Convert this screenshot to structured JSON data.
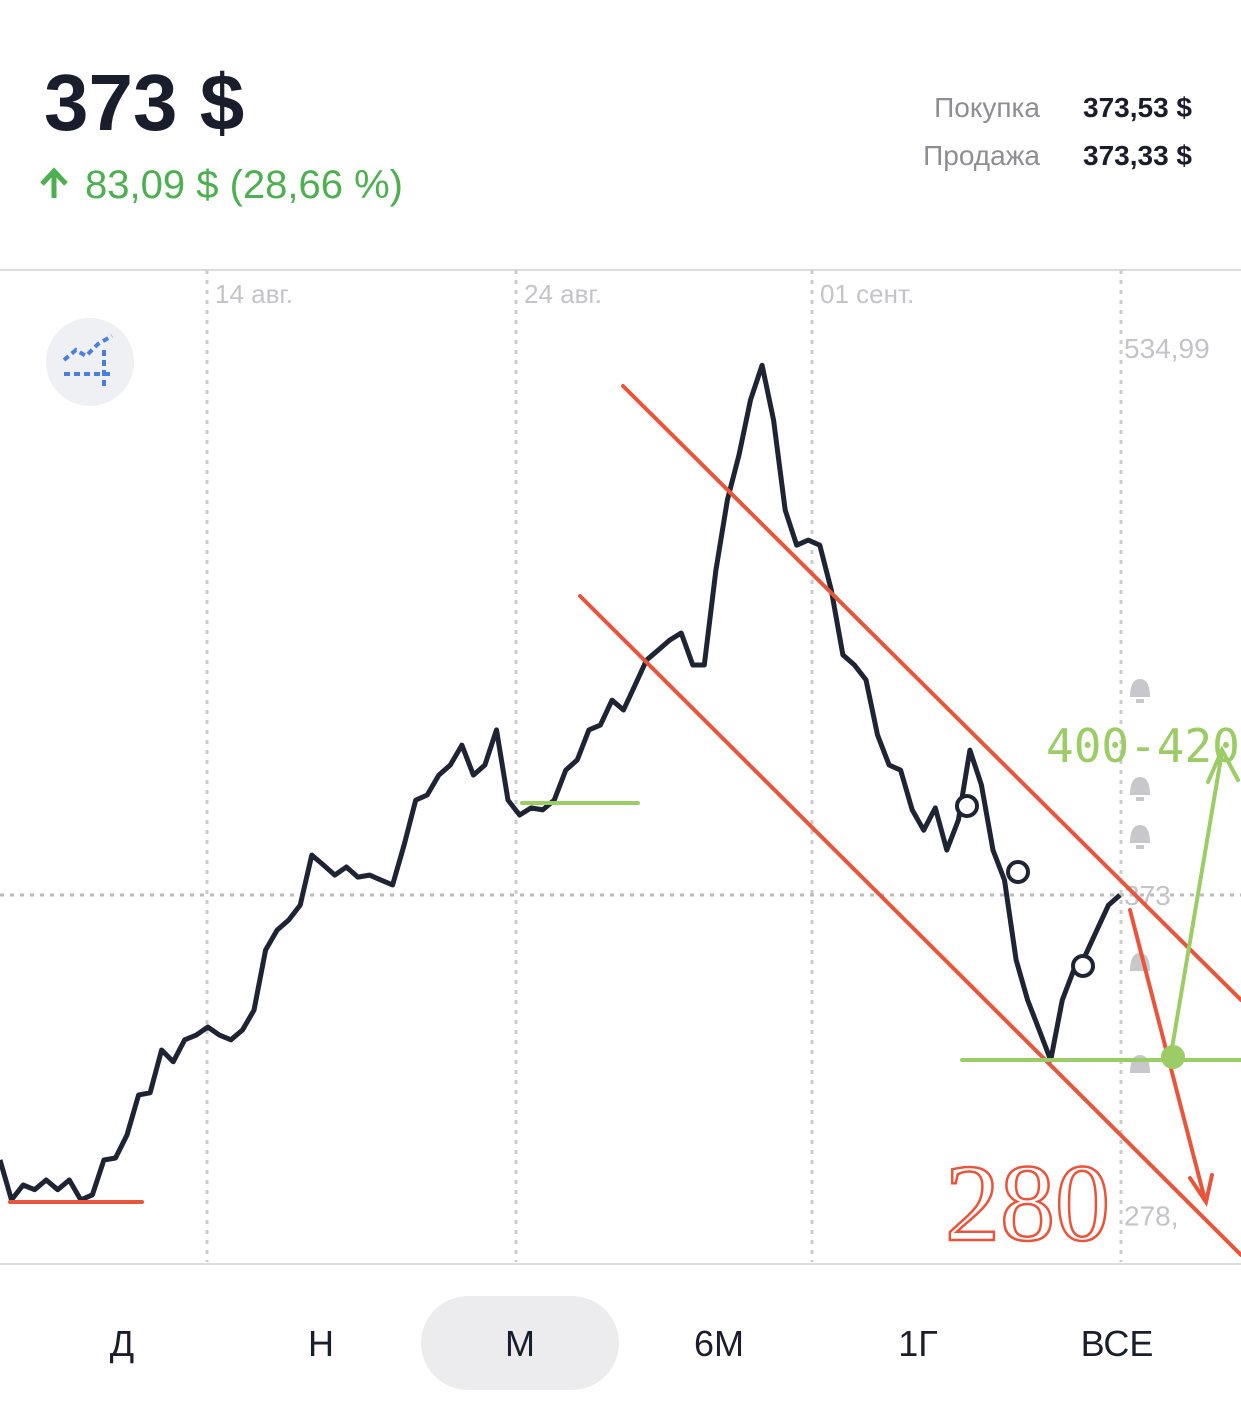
{
  "header": {
    "price": "373 $",
    "change": "83,09 $ (28,66 %)",
    "buy_label": "Покупка",
    "buy_value": "373,53 $",
    "sell_label": "Продажа",
    "sell_value": "373,33 $"
  },
  "chart_data": {
    "type": "line",
    "x_labels": [
      "14 авг.",
      "24 авг.",
      "01 сент."
    ],
    "series": [
      {
        "color": "#1e2433",
        "values": [
          294.5,
          282.7,
          287.1,
          285.7,
          288.6,
          285.7,
          288.6,
          282.7,
          284.2,
          294.5,
          295.1,
          301.9,
          313.8,
          314.4,
          327.1,
          323.6,
          330.1,
          331.5,
          333.9,
          331.5,
          330.1,
          333.0,
          338.9,
          356.7,
          362.6,
          365.6,
          370.0,
          384.8,
          381.9,
          378.9,
          381.3,
          378.3,
          378.9,
          377.4,
          376.0,
          387.8,
          401.1,
          402.6,
          408.5,
          411.5,
          417.4,
          408.5,
          411.5,
          421.9,
          401.1,
          396.7,
          398.8,
          398.2,
          401.1,
          410.0,
          413.0,
          421.9,
          423.3,
          430.7,
          427.8,
          435.2,
          442.6,
          445.5,
          448.5,
          450.6,
          441.1,
          441.1,
          469.2,
          490.0,
          503.3,
          519.6,
          529.9,
          513.6,
          487.0,
          476.6,
          478.1,
          476.6,
          463.3,
          444.1,
          441.1,
          436.7,
          420.4,
          411.5,
          410.0,
          398.2,
          392.2,
          398.8,
          386.3,
          395.2,
          415.9,
          405.6,
          386.3,
          377.4,
          353.8,
          341.9,
          333.0,
          324.1,
          341.9,
          350.8,
          355.2,
          362.6,
          370.0,
          373
        ]
      }
    ],
    "ylim": [
      264.3,
      558.1
    ],
    "yticks": [
      {
        "value": 534.99,
        "label": "534,99"
      },
      373,
      {
        "value": 278,
        "label": "278,"
      }
    ],
    "price_line": 373,
    "annotations": [
      "400-420",
      "280"
    ]
  },
  "periods": [
    "Д",
    "Н",
    "М",
    "6М",
    "1Г",
    "ВСЕ"
  ],
  "selected_period": "М"
}
